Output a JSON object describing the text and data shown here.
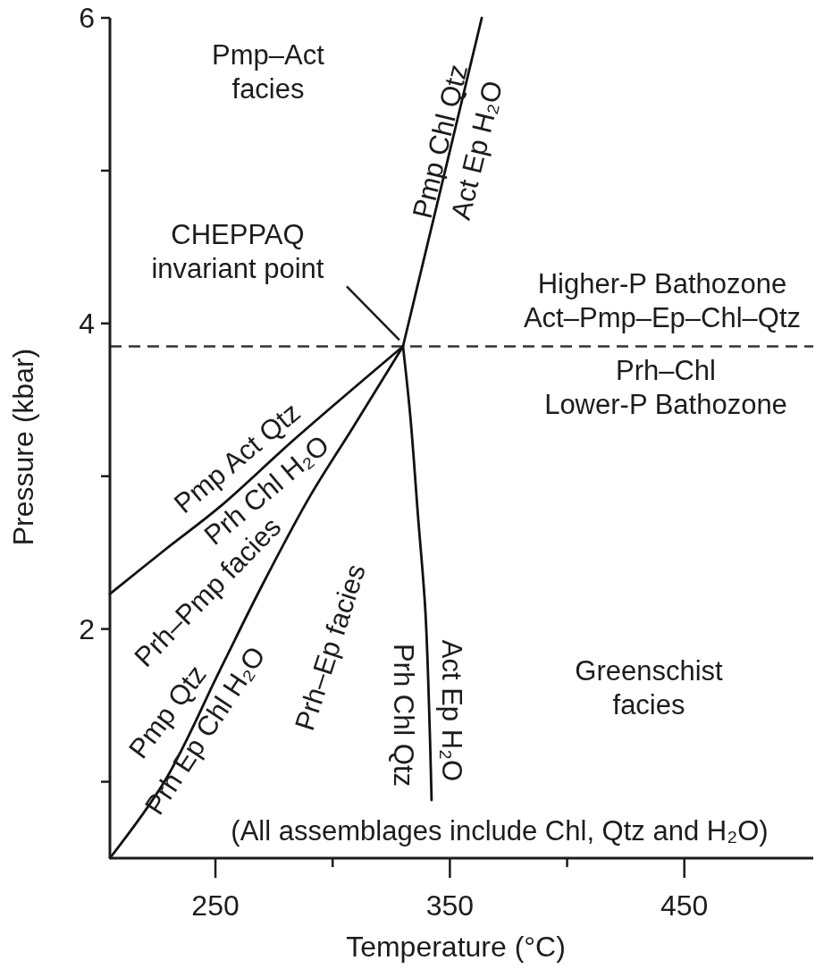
{
  "chart_data": {
    "type": "line",
    "xlabel": "Temperature (°C)",
    "ylabel": "Pressure (kbar)",
    "xlim": [
      205,
      505
    ],
    "ylim": [
      0.5,
      6
    ],
    "xticks": [
      250,
      {
        "value": 300,
        "label": null
      },
      350,
      {
        "value": 400,
        "label": null
      },
      450
    ],
    "yticks": [
      {
        "value": 1,
        "label": null
      },
      2,
      {
        "value": 3,
        "label": null
      },
      4,
      {
        "value": 5,
        "label": null
      },
      6
    ],
    "series": [
      {
        "color": "#111111",
        "x": [
          330.0,
          363.6
        ],
        "values": [
          3.85,
          6.0
        ]
      },
      {
        "color": "#111111",
        "x": [
          330.0,
          333.2,
          336.3,
          339.5,
          341.1,
          342.2
        ],
        "values": [
          3.85,
          3.38,
          2.76,
          2.13,
          1.5,
          0.88
        ]
      },
      {
        "color": "#111111",
        "x": [
          205,
          228.6,
          251.9,
          284.3,
          330.0
        ],
        "values": [
          2.23,
          2.52,
          2.8,
          3.25,
          3.85
        ]
      },
      {
        "color": "#111111",
        "x": [
          205,
          228.6,
          251.9,
          269.4,
          290.0,
          308.3,
          330.0
        ],
        "values": [
          0.5,
          1.01,
          1.73,
          2.27,
          2.86,
          3.31,
          3.85
        ]
      }
    ],
    "ref_lines": [
      {
        "axis": "y",
        "value": 3.85,
        "color": "#333333",
        "line_style": "dashed"
      }
    ],
    "annotations": [
      "Pmp–Act\nfacies",
      {
        "text": "CHEPPAQ\ninvariant point",
        "x": 330.0,
        "y": 3.85
      },
      "Pmp Chl Qtz",
      "Act Ep H₂O",
      "Higher-P Bathozone\nAct–Pmp–Ep–Chl–Qtz",
      "Prh–Chl\nLower-P Bathozone",
      "Pmp Act Qtz",
      "Prh Chl H₂O",
      "Prh–Pmp facies",
      "Pmp Qtz",
      "Prh Ep Chl H₂O",
      "Prh–Ep facies",
      "Prh Chl Qtz",
      "Act Ep H₂O",
      "Greenschist\nfacies",
      "(All assemblages include Chl, Qtz and H₂O)"
    ]
  }
}
